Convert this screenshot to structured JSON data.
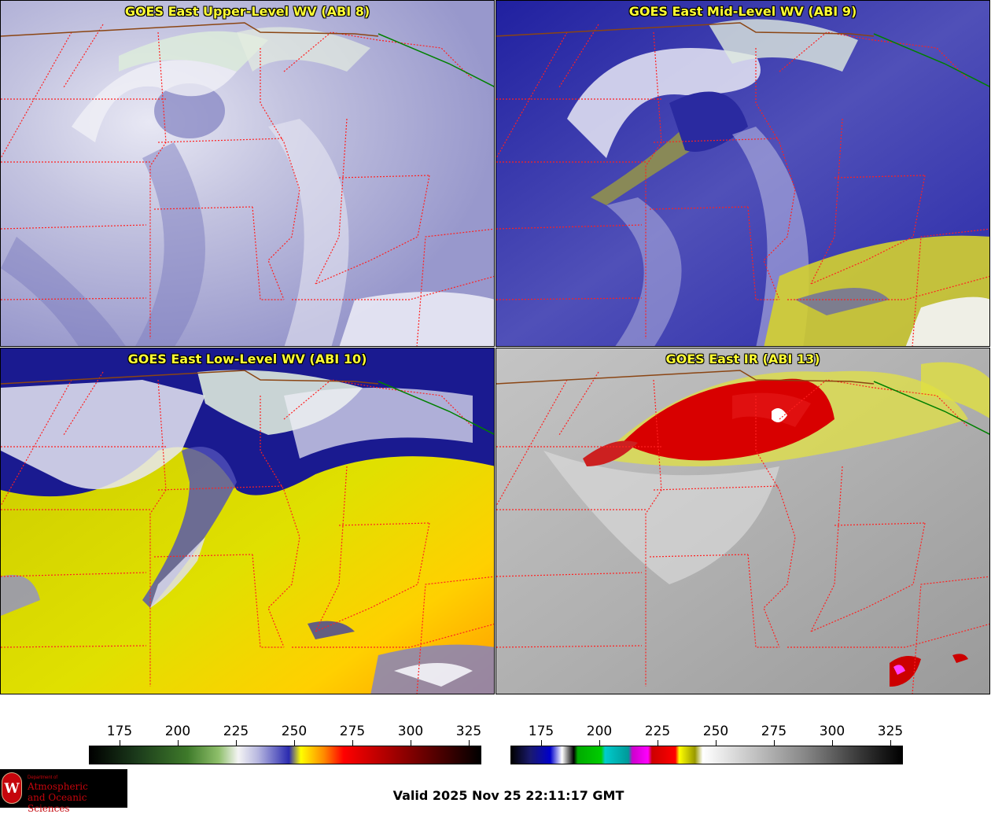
{
  "panels": [
    {
      "title": "GOES East Upper-Level WV (ABI 8)"
    },
    {
      "title": "GOES East Mid-Level WV (ABI 9)"
    },
    {
      "title": "GOES East Low-Level WV (ABI 10)"
    },
    {
      "title": "GOES East IR (ABI 13)"
    }
  ],
  "colorbar_wv": {
    "ticks": [
      "175",
      "200",
      "225",
      "250",
      "275",
      "300",
      "325"
    ]
  },
  "colorbar_ir": {
    "ticks": [
      "175",
      "200",
      "225",
      "250",
      "275",
      "300",
      "325"
    ]
  },
  "logo": {
    "dept": "Department of",
    "line1": "Atmospheric",
    "line2": "and Oceanic Sciences",
    "seal": "W"
  },
  "valid_time": "Valid 2025 Nov 25 22:11:17 GMT",
  "colors": {
    "border_state": "#ff2020",
    "border_country": "#8b4513",
    "border_canada": "#008000"
  }
}
